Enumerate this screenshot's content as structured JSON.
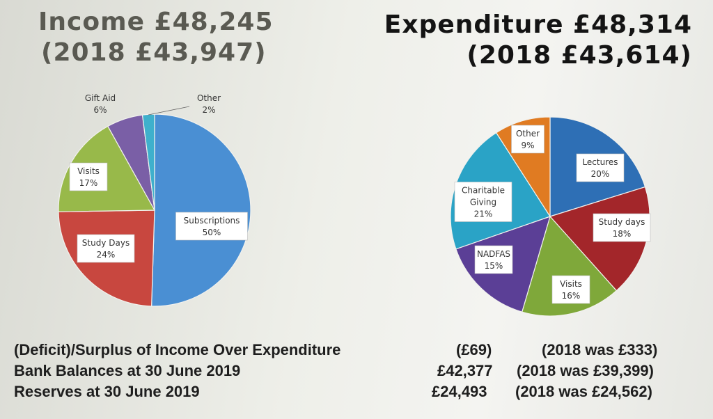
{
  "titles": {
    "income_line1": "Income £48,245",
    "income_line2": "(2018  £43,947)",
    "expenditure_line1": "Expenditure £48,314",
    "expenditure_line2": "(2018  £43,614)"
  },
  "chart_data": [
    {
      "type": "pie",
      "title": "Income £48,245",
      "slices": [
        {
          "label": "Subscriptions",
          "value": 50,
          "pct_text": "50%",
          "color": "#4a8fd3"
        },
        {
          "label": "Study Days",
          "value": 24,
          "pct_text": "24%",
          "color": "#c8473f"
        },
        {
          "label": "Visits",
          "value": 17,
          "pct_text": "17%",
          "color": "#98b94a"
        },
        {
          "label": "Gift Aid",
          "value": 6,
          "pct_text": "6%",
          "color": "#7a5fa6"
        },
        {
          "label": "Other",
          "value": 2,
          "pct_text": "2%",
          "color": "#3fb0cc"
        }
      ]
    },
    {
      "type": "pie",
      "title": "Expenditure £48,314",
      "slices": [
        {
          "label": "Lectures",
          "value": 20,
          "pct_text": "20%",
          "color": "#2e6fb5"
        },
        {
          "label": "Study days",
          "value": 18,
          "pct_text": "18%",
          "color": "#a3262a"
        },
        {
          "label": "Visits",
          "value": 16,
          "pct_text": "16%",
          "color": "#7fa83a"
        },
        {
          "label": "NADFAS",
          "value": 15,
          "pct_text": "15%",
          "color": "#5b3f96"
        },
        {
          "label": "Charitable Giving",
          "value": 21,
          "pct_text": "21%",
          "color": "#2aa3c6"
        },
        {
          "label": "Other",
          "value": 9,
          "pct_text": "9%",
          "color": "#e07b22"
        }
      ]
    }
  ],
  "summary": [
    {
      "label": "(Deficit)/Surplus of Income Over Expenditure",
      "value": "(£69)",
      "prior": "(2018 was £333)"
    },
    {
      "label": "Bank Balances at 30 June 2019",
      "value": "£42,377",
      "prior": "(2018 was £39,399)"
    },
    {
      "label": "Reserves at 30 June 2019",
      "value": "£24,493",
      "prior": "(2018 was £24,562)"
    }
  ]
}
